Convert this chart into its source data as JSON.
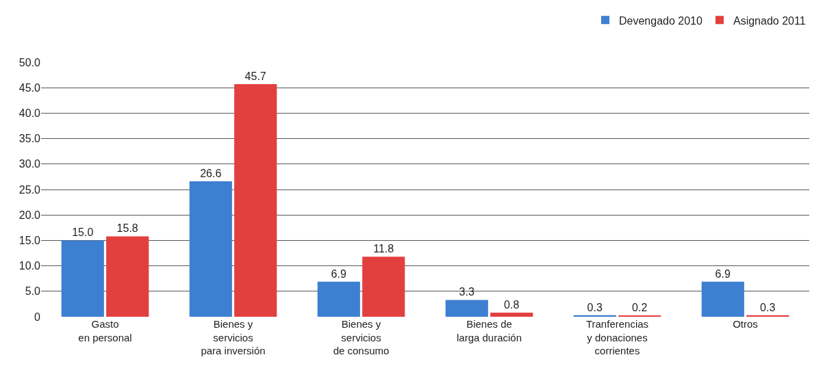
{
  "chart_data": {
    "type": "bar",
    "categories": [
      "Gasto\nen personal",
      "Bienes y\nservicios\npara inversión",
      "Bienes y\nservicios\nde consumo",
      "Bienes de\nlarga duración",
      "Tranferencias\ny donaciones\ncorrientes",
      "Otros"
    ],
    "series": [
      {
        "name": "Devengado 2010",
        "color": "#3d7fd1",
        "values": [
          15.0,
          26.6,
          6.9,
          3.3,
          0.3,
          6.9
        ],
        "value_labels": [
          "15.0",
          "26.6",
          "6.9",
          "3.3",
          "0.3",
          "6.9"
        ]
      },
      {
        "name": "Asignado 2011",
        "color": "#e2403f",
        "values": [
          15.8,
          45.7,
          11.8,
          0.8,
          0.2,
          0.3
        ],
        "value_labels": [
          "15.8",
          "45.7",
          "11.8",
          "0.8",
          "0.2",
          "0.3"
        ]
      }
    ],
    "ylim": [
      0,
      50
    ],
    "yticks": [
      0,
      {
        "value": 5,
        "label": "5.0"
      },
      {
        "value": 10,
        "label": "10.0"
      },
      {
        "value": 15,
        "label": "15.0"
      },
      {
        "value": 20,
        "label": "20.0"
      },
      {
        "value": 25,
        "label": "25.0"
      },
      {
        "value": 30,
        "label": "30.0"
      },
      {
        "value": 35,
        "label": "35.0"
      },
      {
        "value": 40,
        "label": "40.0"
      },
      {
        "value": 45,
        "label": "45.0"
      },
      {
        "value": 50,
        "label": "50.0"
      }
    ],
    "grid": "y",
    "legend": "top right"
  }
}
